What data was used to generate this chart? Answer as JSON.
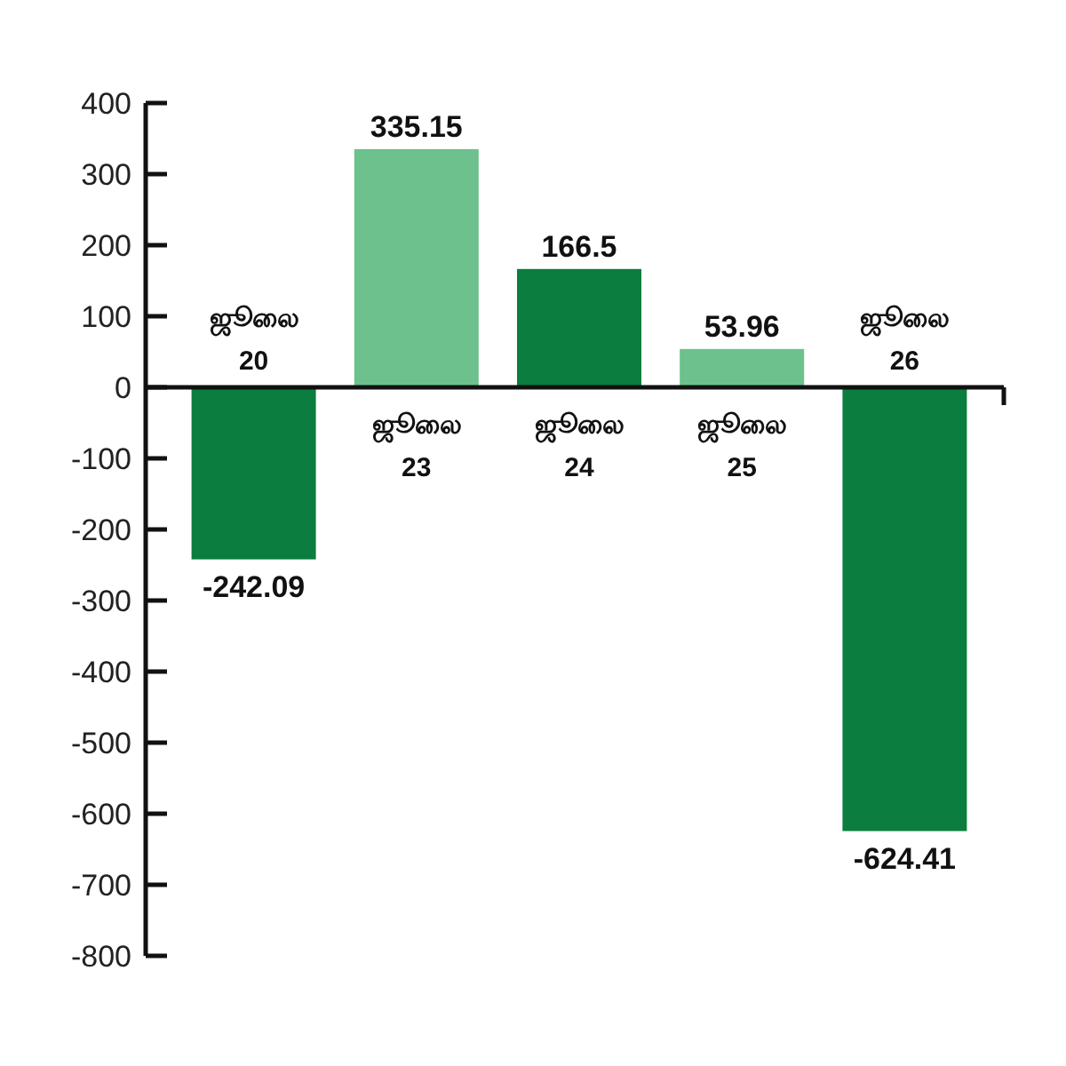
{
  "chart_data": {
    "type": "bar",
    "categories": [
      "ஜூலை 20",
      "ஜூலை 23",
      "ஜூலை 24",
      "ஜூலை 25",
      "ஜூலை 26"
    ],
    "values": [
      -242.09,
      335.15,
      166.5,
      53.96,
      -624.41
    ],
    "colors": [
      "#0b7d3e",
      "#6cc18c",
      "#0b7d3e",
      "#6cc18c",
      "#0b7d3e"
    ],
    "ylim": [
      -800,
      400
    ],
    "yticks": [
      -800,
      -700,
      -600,
      -500,
      -400,
      -300,
      -200,
      -100,
      0,
      100,
      200,
      300,
      400
    ],
    "data_labels": true,
    "grid": false
  }
}
